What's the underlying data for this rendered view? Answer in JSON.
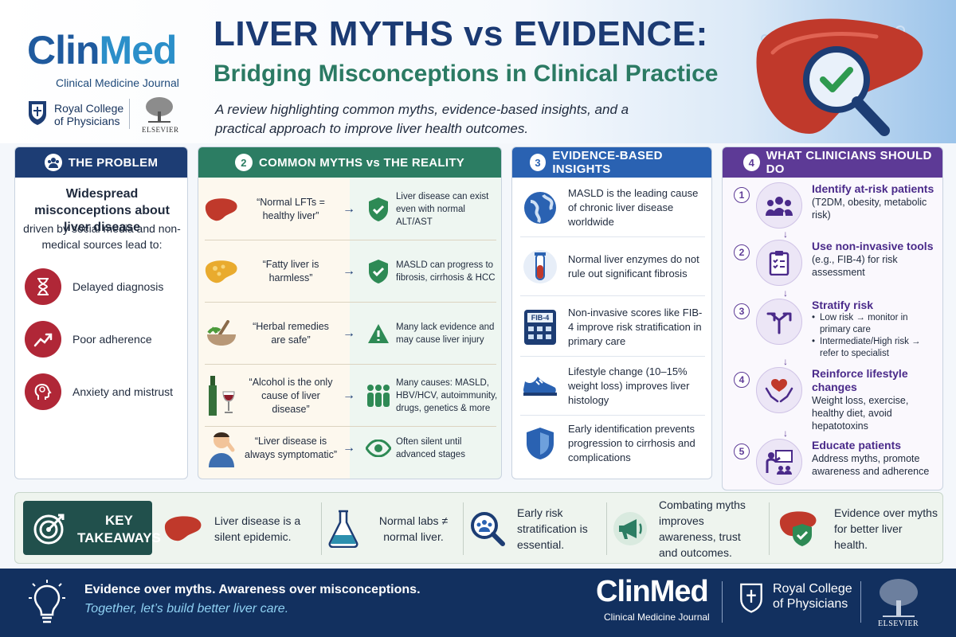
{
  "header": {
    "logo": {
      "clin": "Clin",
      "med": "Med",
      "subtitle": "Clinical Medicine Journal"
    },
    "rcp": "Royal College of Physicians",
    "elsevier": "ELSEVIER",
    "title": "LIVER MYTHS vs EVIDENCE:",
    "subtitle": "Bridging Misconceptions in Clinical Practice",
    "intro": "A review highlighting common myths, evidence-based insights, and a practical approach to improve liver health outcomes."
  },
  "problem": {
    "heading": "THE PROBLEM",
    "headline": "Widespread misconceptions about liver disease",
    "description": "driven by social media and non-medical sources lead to:",
    "items": [
      {
        "icon": "hourglass-icon",
        "label": "Delayed diagnosis"
      },
      {
        "icon": "trend-up-icon",
        "label": "Poor adherence"
      },
      {
        "icon": "head-brain-icon",
        "label": "Anxiety and mistrust"
      }
    ]
  },
  "myths": {
    "number": "2",
    "heading": "COMMON MYTHS vs THE REALITY",
    "arrow": "→",
    "rows": [
      {
        "myth": "“Normal LFTs = healthy liver”",
        "reality": "Liver disease can exist even with normal ALT/AST",
        "myth_icon": "liver-icon",
        "reality_icon": "shield-check-icon"
      },
      {
        "myth": "“Fatty liver is harmless”",
        "reality": "MASLD can progress to fibrosis, cirrhosis & HCC",
        "myth_icon": "fatty-liver-icon",
        "reality_icon": "shield-check-icon"
      },
      {
        "myth": "“Herbal remedies are safe”",
        "reality": "Many lack evidence and may cause liver injury",
        "myth_icon": "mortar-pestle-icon",
        "reality_icon": "warning-triangle-icon"
      },
      {
        "myth": "“Alcohol is the only cause of liver disease”",
        "reality": "Many causes: MASLD, HBV/HCV, autoimmunity, drugs, genetics & more",
        "myth_icon": "wine-icon",
        "reality_icon": "people-group-icon"
      },
      {
        "myth": "“Liver disease is always symptomatic”",
        "reality": "Often silent until advanced stages",
        "myth_icon": "person-pain-icon",
        "reality_icon": "eye-icon"
      }
    ]
  },
  "insights": {
    "number": "3",
    "heading": "EVIDENCE-BASED INSIGHTS",
    "items": [
      {
        "icon": "globe-icon",
        "text": "MASLD is the leading cause of chronic liver disease worldwide"
      },
      {
        "icon": "test-tube-icon",
        "text": "Normal liver enzymes do not rule out significant fibrosis"
      },
      {
        "icon": "calculator-icon",
        "icon_label": "FIB-4",
        "text": "Non-invasive scores like FIB-4 improve risk stratification in primary care"
      },
      {
        "icon": "sneaker-icon",
        "text": "Lifestyle change (10–15% weight loss) improves liver histology"
      },
      {
        "icon": "shield-icon",
        "text": "Early identification prevents progression to cirrhosis and complications"
      }
    ]
  },
  "clinicians": {
    "number": "4",
    "heading": "WHAT CLINICIANS SHOULD DO",
    "arrow": "↓",
    "steps": [
      {
        "num": "1",
        "icon": "people-icon",
        "title": "Identify at-risk patients",
        "desc": "(T2DM, obesity, metabolic risk)"
      },
      {
        "num": "2",
        "icon": "clipboard-icon",
        "title": "Use non-invasive tools",
        "desc": "(e.g., FIB-4) for risk assessment"
      },
      {
        "num": "3",
        "icon": "split-arrows-icon",
        "title": "Stratify risk",
        "bullets": [
          "Low risk → monitor in primary care",
          "Intermediate/High risk → refer to specialist"
        ]
      },
      {
        "num": "4",
        "icon": "heart-hands-icon",
        "title": "Reinforce lifestyle changes",
        "desc": "Weight loss, exercise, healthy diet, avoid hepatotoxins"
      },
      {
        "num": "5",
        "icon": "teacher-icon",
        "title": "Educate patients",
        "desc": "Address myths, promote awareness and adherence"
      }
    ]
  },
  "takeaways": {
    "label_line1": "KEY",
    "label_line2": "TAKEAWAYS",
    "items": [
      {
        "icon": "liver-icon",
        "text": "Liver disease is a silent epidemic."
      },
      {
        "icon": "flask-icon",
        "text": "Normal labs ≠ normal liver."
      },
      {
        "icon": "magnifier-people-icon",
        "text": "Early risk stratification is essential."
      },
      {
        "icon": "megaphone-icon",
        "text": "Combating myths improves awareness, trust and outcomes."
      },
      {
        "icon": "liver-shield-icon",
        "text": "Evidence over myths for better liver health."
      }
    ]
  },
  "footer": {
    "line1": "Evidence over myths. Awareness over misconceptions.",
    "line2": "Together, let’s build better liver care.",
    "logo": "ClinMed",
    "logo_sub": "Clinical Medicine Journal",
    "rcp": "Royal College of Physicians",
    "elsevier": "ELSEVIER"
  },
  "colors": {
    "navy": "#1d3d74",
    "green": "#2c7d63",
    "blue": "#2a62b2",
    "purple": "#5d3a96",
    "red": "#b02737",
    "footer": "#12305f"
  }
}
